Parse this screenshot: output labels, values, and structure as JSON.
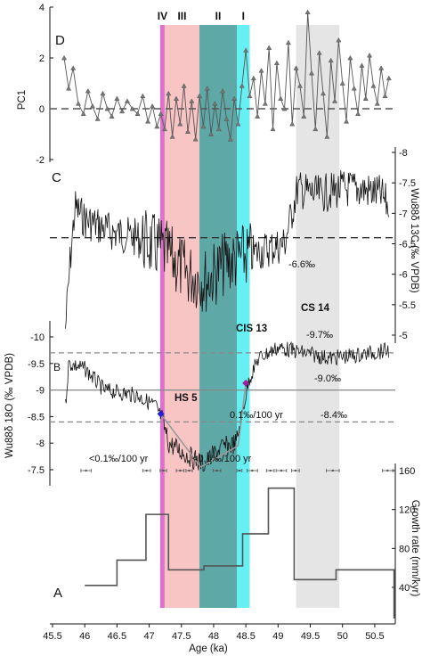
{
  "chart_data": {
    "type": "line",
    "xlabel": "Age (ka)",
    "xlim": [
      45.5,
      50.9
    ],
    "xticks": [
      "45.5",
      "46",
      "46.5",
      "47",
      "47.5",
      "48",
      "48.5",
      "49",
      "49.5",
      "50",
      "50.5"
    ],
    "bands": [
      {
        "label": "IV",
        "x0": 47.17,
        "x1": 47.24,
        "color": "#e070d0"
      },
      {
        "label": "III",
        "x0": 47.24,
        "x1": 47.78,
        "color": "#f9c4c4"
      },
      {
        "label": "II",
        "x0": 47.78,
        "x1": 48.36,
        "color": "#5fa8a8"
      },
      {
        "label": "I",
        "x0": 48.36,
        "x1": 48.56,
        "color": "#66f0f4"
      },
      {
        "label": "",
        "x0": 49.28,
        "x1": 49.95,
        "color": "#e2e2e2"
      }
    ],
    "panels": {
      "D": {
        "letter": "D",
        "ylabel": "PC1",
        "ylim": [
          -2,
          4
        ],
        "yticks": [
          "-2",
          "0",
          "2",
          "4"
        ],
        "zero_line": 0,
        "x": [
          45.68,
          45.75,
          45.82,
          45.9,
          45.98,
          46.05,
          46.12,
          46.2,
          46.28,
          46.35,
          46.42,
          46.5,
          46.58,
          46.66,
          46.74,
          46.82,
          46.9,
          46.98,
          47.05,
          47.12,
          47.18,
          47.24,
          47.3,
          47.36,
          47.42,
          47.48,
          47.54,
          47.6,
          47.66,
          47.72,
          47.78,
          47.84,
          47.9,
          47.96,
          48.02,
          48.08,
          48.14,
          48.2,
          48.26,
          48.32,
          48.38,
          48.44,
          48.5,
          48.56,
          48.62,
          48.68,
          48.74,
          48.8,
          48.86,
          48.92,
          48.98,
          49.04,
          49.1,
          49.16,
          49.22,
          49.28,
          49.34,
          49.4,
          49.46,
          49.52,
          49.58,
          49.64,
          49.7,
          49.76,
          49.82,
          49.88,
          49.94,
          50.0,
          50.06,
          50.12,
          50.18,
          50.24,
          50.3,
          50.36,
          50.42,
          50.48,
          50.54,
          50.6,
          50.66,
          50.72
        ],
        "y": [
          2.0,
          0.8,
          1.6,
          0.2,
          -0.2,
          0.7,
          0.1,
          -0.4,
          0.6,
          0.0,
          -0.3,
          0.4,
          -0.1,
          0.3,
          0.0,
          -0.2,
          0.5,
          -0.5,
          0.1,
          -0.7,
          -0.2,
          -0.8,
          0.6,
          -1.1,
          0.4,
          -0.6,
          0.9,
          -0.9,
          0.3,
          -1.2,
          0.5,
          -0.7,
          0.8,
          -1.0,
          0.2,
          -0.8,
          0.7,
          -0.4,
          -1.2,
          0.4,
          -0.6,
          0.9,
          2.3,
          0.5,
          1.2,
          -0.3,
          1.5,
          0.2,
          2.4,
          -0.8,
          1.8,
          0.4,
          0.0,
          2.6,
          -0.6,
          1.6,
          0.9,
          -0.3,
          3.8,
          1.4,
          -0.8,
          2.2,
          0.6,
          -1.1,
          1.9,
          0.3,
          2.7,
          1.0,
          -0.5,
          2.0,
          0.8,
          -0.2,
          1.7,
          0.4,
          2.1,
          0.9,
          0.2,
          1.6,
          0.5,
          1.2
        ]
      },
      "C": {
        "letter": "C",
        "ylabel": "Wu88δ 13C (‰ VPDB)",
        "ylim": [
          -4.8,
          -8.1
        ],
        "yticks": [
          "-5",
          "-5.5",
          "-6",
          "-6.5",
          "-7",
          "-7.5",
          "-8"
        ],
        "mean_line": -6.6,
        "mean_label": "-6.6‰"
      },
      "B": {
        "letter": "B",
        "ylabel": "Wu88δ 18O (‰ VPDB)",
        "ylim": [
          -7.5,
          -10.1
        ],
        "yticks": [
          "-7.5",
          "-8",
          "-8.5",
          "-9",
          "-9.5",
          "-10"
        ],
        "hlines": [
          {
            "value": -9.7,
            "label": "-9.7‰",
            "style": "dashed"
          },
          {
            "value": -9.0,
            "label": "-9.0‰",
            "style": "solid"
          },
          {
            "value": -8.4,
            "label": "-8.4‰",
            "style": "dashed"
          }
        ],
        "events": [
          "HS 5",
          "CIS 13",
          "CS 14"
        ],
        "trend_labels": [
          "<0.1‰/100 yr",
          "<0.1‰/100 yr",
          "0.1‰/100 yr"
        ],
        "markers": [
          {
            "x": 47.18,
            "y": -8.55,
            "color": "#2020d0"
          },
          {
            "x": 48.5,
            "y": -9.13,
            "color": "#a020a0"
          }
        ]
      },
      "A": {
        "letter": "A",
        "ylabel": "Growth rate (mm/kyr)",
        "ylim": [
          0,
          165
        ],
        "yticks": [
          "40",
          "80",
          "120",
          "160"
        ],
        "step_x": [
          46.0,
          46.5,
          46.95,
          47.3,
          47.85,
          48.45,
          48.85,
          49.25,
          49.9,
          50.8
        ],
        "step_y": [
          42,
          68,
          115,
          58,
          62,
          95,
          142,
          48,
          58,
          8
        ]
      }
    }
  }
}
